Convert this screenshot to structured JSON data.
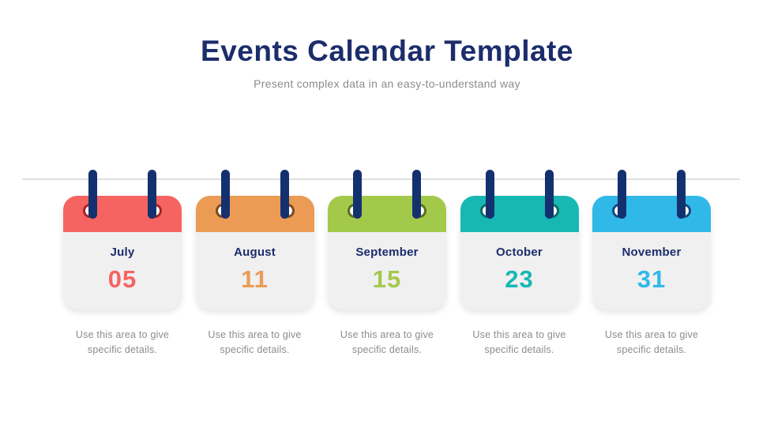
{
  "slide": {
    "title": "Events Calendar Template",
    "subtitle": "Present complex data in an easy-to-understand way"
  },
  "colors": {
    "navy": "#1C2D6B",
    "peg-navy": "#14316F",
    "line-gray": "#DFDFDF",
    "card-body": "#F0F0F1",
    "text-gray": "#8C8C8C",
    "background": "#FFFFFF"
  },
  "cards": [
    {
      "month": "July",
      "day": "05",
      "description": "Use this area to give specific details.",
      "accent": "#F56460",
      "ring": "#A3242A"
    },
    {
      "month": "August",
      "day": "11",
      "description": "Use this area to give specific details.",
      "accent": "#EB9B54",
      "ring": "#7C4A1F"
    },
    {
      "month": "September",
      "day": "15",
      "description": "Use this area to give specific details.",
      "accent": "#A3C94B",
      "ring": "#5C701F"
    },
    {
      "month": "October",
      "day": "23",
      "description": "Use this area to give specific details.",
      "accent": "#17B8B4",
      "ring": "#0F6B68"
    },
    {
      "month": "November",
      "day": "31",
      "description": "Use this area to give specific details.",
      "accent": "#30B8E8",
      "ring": "#174A7C"
    }
  ]
}
